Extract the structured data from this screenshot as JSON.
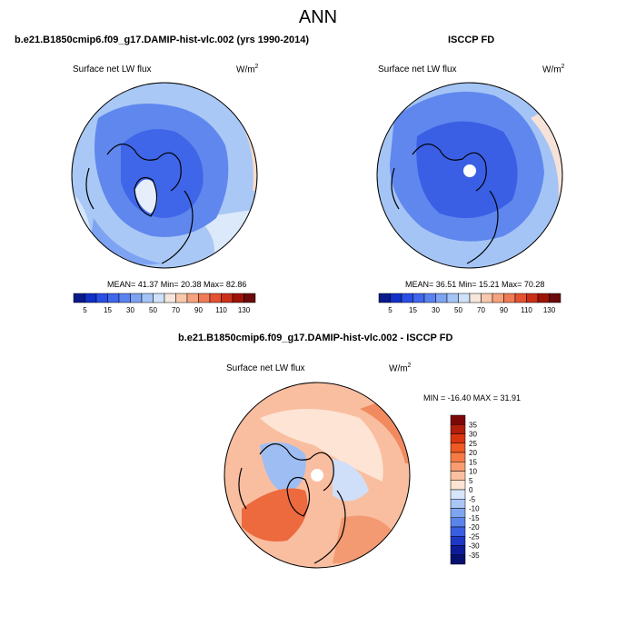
{
  "title": "ANN",
  "chart_data": [
    {
      "type": "heatmap",
      "panel": "model",
      "title": "b.e21.B1850cmip6.f09_g17.DAMIP-hist-vlc.002 (yrs 1990-2014)",
      "subtitle": "Surface net LW flux",
      "units": "W/m",
      "units_exp": "2",
      "stats": {
        "mean": "41.37",
        "min": "20.38",
        "max": "82.86"
      },
      "stats_text": "MEAN=  41.37  Min=  20.38  Max=  82.86",
      "colorbar_ticks": [
        "5",
        "15",
        "30",
        "50",
        "70",
        "90",
        "110",
        "130"
      ],
      "colorbar_colors": [
        "#0a1a8a",
        "#1030c8",
        "#2a4ee6",
        "#3f66ec",
        "#5a82f0",
        "#7ea3f2",
        "#a4c4f6",
        "#cfe2fb",
        "#f6e6dc",
        "#f9c8ad",
        "#f6a27e",
        "#ef7b56",
        "#e45232",
        "#cc2f18",
        "#9e1308",
        "#6a0a0a"
      ]
    },
    {
      "type": "heatmap",
      "panel": "obs",
      "title": "ISCCP FD",
      "subtitle": "Surface net LW flux",
      "units": "W/m",
      "units_exp": "2",
      "stats": {
        "mean": "36.51",
        "min": "15.21",
        "max": "70.28"
      },
      "stats_text": "MEAN=  36.51  Min=  15.21  Max=  70.28",
      "colorbar_ticks": [
        "5",
        "15",
        "30",
        "50",
        "70",
        "90",
        "110",
        "130"
      ],
      "colorbar_colors": [
        "#0a1a8a",
        "#1030c8",
        "#2a4ee6",
        "#3f66ec",
        "#5a82f0",
        "#7ea3f2",
        "#a4c4f6",
        "#cfe2fb",
        "#f6e6dc",
        "#f9c8ad",
        "#f6a27e",
        "#ef7b56",
        "#e45232",
        "#cc2f18",
        "#9e1308",
        "#6a0a0a"
      ]
    },
    {
      "type": "heatmap",
      "panel": "diff",
      "title": "b.e21.B1850cmip6.f09_g17.DAMIP-hist-vlc.002 - ISCCP FD",
      "subtitle": "Surface net LW flux",
      "units": "W/m",
      "units_exp": "2",
      "stats": {
        "min": "-16.40",
        "max": "31.91"
      },
      "stats_text": "MIN = -16.40 MAX =  31.91",
      "colorbar_ticks": [
        "35",
        "30",
        "25",
        "20",
        "15",
        "10",
        "5",
        "0",
        "-5",
        "-10",
        "-15",
        "-20",
        "-25",
        "-30",
        "-35"
      ],
      "colorbar_colors": [
        "#7a0808",
        "#b01e0c",
        "#d9360f",
        "#ee5a22",
        "#f77a44",
        "#fa9c70",
        "#fcc0a0",
        "#fde4d4",
        "#d8e6fb",
        "#aac6f6",
        "#7ea5f0",
        "#5a84ea",
        "#3a5ee0",
        "#1e38c6",
        "#0e1c9a",
        "#07106e"
      ]
    }
  ]
}
